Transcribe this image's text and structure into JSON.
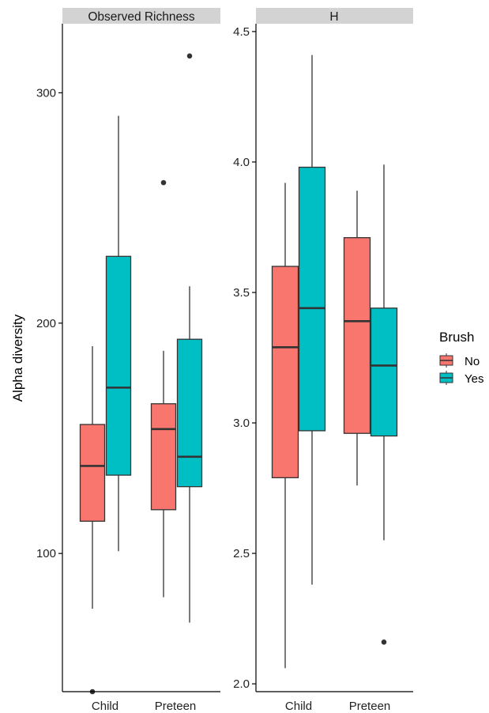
{
  "chart_data": {
    "type": "box",
    "ylabel": "Alpha diversity",
    "categories": [
      "Child",
      "Preteen"
    ],
    "legend": {
      "title": "Brush",
      "position": "right",
      "entries": [
        {
          "label": "No",
          "color": "#F8766D"
        },
        {
          "label": "Yes",
          "color": "#00BFC4"
        }
      ]
    },
    "facets": [
      {
        "title": "Observed Richness",
        "ylim": [
          40,
          330
        ],
        "yticks": [
          100,
          200,
          300
        ],
        "boxes": [
          {
            "category": "Child",
            "group": "No",
            "whisker_low": 76,
            "q1": 114,
            "median": 138,
            "q3": 156,
            "whisker_high": 190,
            "outliers": [
              40
            ]
          },
          {
            "category": "Child",
            "group": "Yes",
            "whisker_low": 101,
            "q1": 134,
            "median": 172,
            "q3": 229,
            "whisker_high": 290,
            "outliers": []
          },
          {
            "category": "Preteen",
            "group": "No",
            "whisker_low": 81,
            "q1": 119,
            "median": 154,
            "q3": 165,
            "whisker_high": 188,
            "outliers": [
              261
            ]
          },
          {
            "category": "Preteen",
            "group": "Yes",
            "whisker_low": 70,
            "q1": 129,
            "median": 142,
            "q3": 193,
            "whisker_high": 216,
            "outliers": [
              316
            ]
          }
        ]
      },
      {
        "title": "H",
        "ylim": [
          1.97,
          4.53
        ],
        "yticks": [
          2.0,
          2.5,
          3.0,
          3.5,
          4.0,
          4.5
        ],
        "ytick_labels": [
          "2.0",
          "2.5",
          "3.0",
          "3.5",
          "4.0",
          "4.5"
        ],
        "boxes": [
          {
            "category": "Child",
            "group": "No",
            "whisker_low": 2.06,
            "q1": 2.79,
            "median": 3.29,
            "q3": 3.6,
            "whisker_high": 3.92,
            "outliers": []
          },
          {
            "category": "Child",
            "group": "Yes",
            "whisker_low": 2.38,
            "q1": 2.97,
            "median": 3.44,
            "q3": 3.98,
            "whisker_high": 4.41,
            "outliers": []
          },
          {
            "category": "Preteen",
            "group": "No",
            "whisker_low": 2.76,
            "q1": 2.96,
            "median": 3.39,
            "q3": 3.71,
            "whisker_high": 3.89,
            "outliers": []
          },
          {
            "category": "Preteen",
            "group": "Yes",
            "whisker_low": 2.55,
            "q1": 2.95,
            "median": 3.22,
            "q3": 3.44,
            "whisker_high": 3.99,
            "outliers": [
              2.16
            ]
          }
        ]
      }
    ]
  }
}
